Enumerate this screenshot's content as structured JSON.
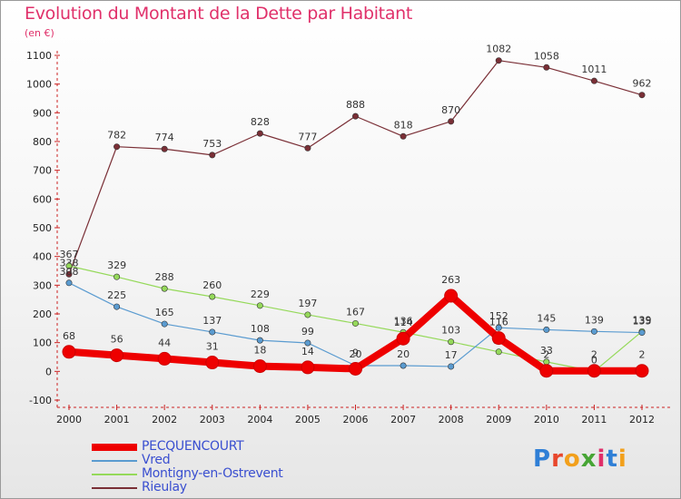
{
  "title": "Evolution du Montant de la Dette par Habitant",
  "unit": "(en €)",
  "logo": {
    "text": "Proxiti",
    "letter_colors": [
      "#2f7fd6",
      "#e8472c",
      "#f2a01c",
      "#47a535",
      "#e0306a",
      "#2f7fd6",
      "#f2a01c"
    ]
  },
  "chart_data": {
    "type": "line",
    "x": [
      "2000",
      "2001",
      "2002",
      "2003",
      "2004",
      "2005",
      "2006",
      "2007",
      "2008",
      "2009",
      "2010",
      "2011",
      "2012"
    ],
    "ylim": [
      -100,
      1100
    ],
    "yticks": [
      -100,
      0,
      100,
      200,
      300,
      400,
      500,
      600,
      700,
      800,
      900,
      1000,
      1100
    ],
    "grid": false,
    "legend": "bottom-left",
    "series": [
      {
        "name": "Rieulay",
        "color": "#7a2f36",
        "width": 1.2,
        "values": [
          338,
          782,
          774,
          753,
          828,
          777,
          888,
          818,
          870,
          1082,
          1058,
          1011,
          962
        ],
        "labels": [
          "338",
          "782",
          "774",
          "753",
          "828",
          "777",
          "888",
          "818",
          "870",
          "1082",
          "1058",
          "1011",
          "962"
        ]
      },
      {
        "name": "Montigny-en-Ostrevent",
        "color": "#95d95a",
        "width": 1.2,
        "values": [
          367,
          329,
          288,
          260,
          229,
          197,
          167,
          136,
          103,
          68,
          33,
          0,
          139
        ],
        "labels": [
          "367",
          "329",
          "288",
          "260",
          "229",
          "197",
          "167",
          "136",
          "103",
          "68",
          "33",
          "0",
          "139"
        ]
      },
      {
        "name": "Vred",
        "color": "#5a9bd0",
        "width": 1.2,
        "values": [
          308,
          225,
          165,
          137,
          108,
          99,
          20,
          20,
          17,
          152,
          145,
          139,
          135
        ],
        "labels": [
          "308",
          "225",
          "165",
          "137",
          "108",
          "99",
          "20",
          "20",
          "17",
          "152",
          "145",
          "139",
          "135"
        ]
      },
      {
        "name": "PECQUENCOURT",
        "color": "#ee0000",
        "width": 8,
        "values": [
          68,
          56,
          44,
          31,
          18,
          14,
          9,
          114,
          263,
          116,
          2,
          2,
          2
        ],
        "labels": [
          "68",
          "56",
          "44",
          "31",
          "18",
          "14",
          "9",
          "114",
          "263",
          "116",
          "2",
          "2",
          "2"
        ]
      }
    ],
    "legend_order": [
      "PECQUENCOURT",
      "Vred",
      "Montigny-en-Ostrevent",
      "Rieulay"
    ]
  }
}
